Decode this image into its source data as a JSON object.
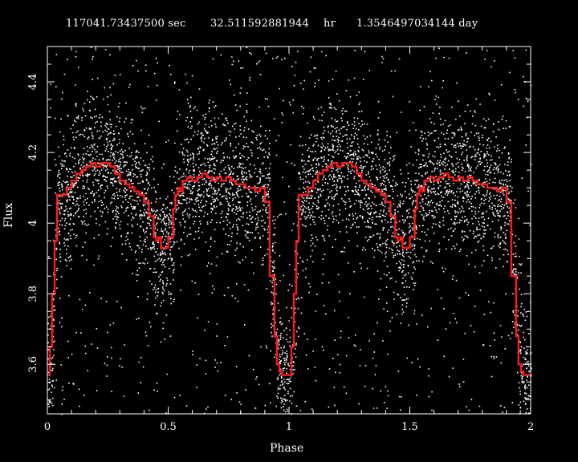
{
  "title": {
    "period_sec": "117041.73437500 sec",
    "period_hr": "32.511592881944",
    "hr_unit": "hr",
    "period_day": "1.3546497034144 day"
  },
  "colors": {
    "background": "#000000",
    "points": "#ffffff",
    "binned_curve": "#ff1a1a",
    "axes": "#ffffff"
  },
  "chart_data": {
    "type": "scatter",
    "title": "117041.73437500 sec 32.511592881944 hr 1.3546497034144 day",
    "xlabel": "Phase",
    "ylabel": "Flux",
    "xlim": [
      0,
      2
    ],
    "ylim": [
      3.46,
      4.5
    ],
    "xticks": [
      0,
      0.5,
      1,
      1.5,
      2
    ],
    "xtick_labels": [
      "0",
      "0.5",
      "1",
      "1.5",
      "2"
    ],
    "yticks": [
      3.6,
      3.8,
      4.0,
      4.2,
      4.4
    ],
    "ytick_labels": [
      "3.6",
      "3.8",
      "4",
      "4.2",
      "4.4"
    ],
    "series": [
      {
        "kind": "binned_step",
        "x": [
          0.0,
          0.01,
          0.02,
          0.03,
          0.04,
          0.06,
          0.08,
          0.1,
          0.12,
          0.14,
          0.16,
          0.18,
          0.2,
          0.22,
          0.24,
          0.26,
          0.28,
          0.3,
          0.32,
          0.34,
          0.36,
          0.38,
          0.4,
          0.42,
          0.44,
          0.45,
          0.46,
          0.47,
          0.48,
          0.5,
          0.52,
          0.53,
          0.54,
          0.55,
          0.56,
          0.58,
          0.6,
          0.62,
          0.64,
          0.66,
          0.68,
          0.7,
          0.72,
          0.74,
          0.76,
          0.78,
          0.8,
          0.82,
          0.84,
          0.86,
          0.88,
          0.9,
          0.92,
          0.94,
          0.95,
          0.96,
          0.97,
          0.98,
          1.0
        ],
        "y": [
          3.57,
          3.65,
          3.8,
          3.95,
          4.08,
          4.08,
          4.1,
          4.12,
          4.14,
          4.15,
          4.16,
          4.17,
          4.16,
          4.17,
          4.17,
          4.16,
          4.14,
          4.12,
          4.11,
          4.1,
          4.09,
          4.08,
          4.06,
          4.02,
          3.96,
          3.95,
          3.96,
          3.93,
          3.93,
          3.96,
          4.04,
          4.08,
          4.1,
          4.09,
          4.12,
          4.13,
          4.12,
          4.13,
          4.14,
          4.13,
          4.12,
          4.13,
          4.12,
          4.13,
          4.12,
          4.11,
          4.11,
          4.1,
          4.1,
          4.09,
          4.1,
          4.06,
          3.85,
          3.68,
          3.6,
          3.58,
          3.57,
          3.57,
          3.57
        ]
      }
    ]
  }
}
